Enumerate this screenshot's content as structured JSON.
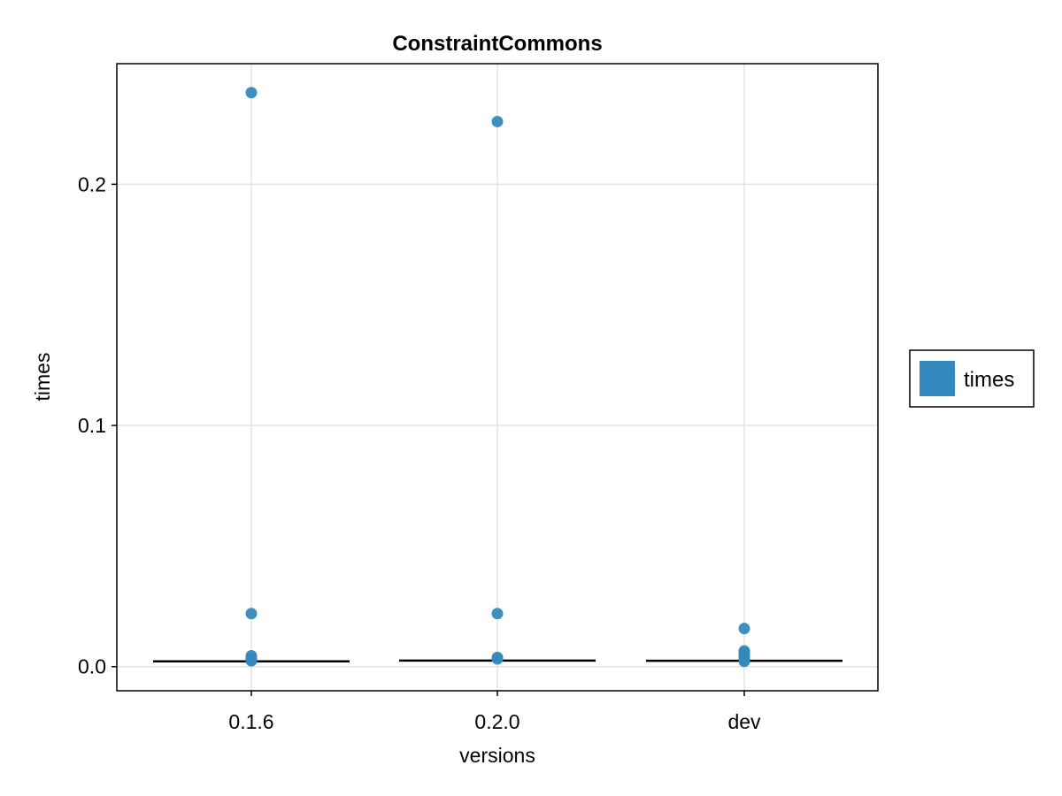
{
  "chart_data": {
    "type": "scatter",
    "title": "ConstraintCommons",
    "xlabel": "versions",
    "ylabel": "times",
    "categories": [
      "0.1.6",
      "0.2.0",
      "dev"
    ],
    "ylim": [
      -0.01,
      0.25
    ],
    "yticks": [
      0.0,
      0.1,
      0.2
    ],
    "ytick_labels": [
      "0.0",
      "0.1",
      "0.2"
    ],
    "grid": true,
    "legend_position": "right",
    "series": [
      {
        "name": "times",
        "color": "#348ABD",
        "points": [
          {
            "category": "0.1.6",
            "value": 0.238
          },
          {
            "category": "0.1.6",
            "value": 0.022
          },
          {
            "category": "0.1.6",
            "value": 0.0045
          },
          {
            "category": "0.1.6",
            "value": 0.0035
          },
          {
            "category": "0.1.6",
            "value": 0.0028
          },
          {
            "category": "0.1.6",
            "value": 0.0024
          },
          {
            "category": "0.2.0",
            "value": 0.226
          },
          {
            "category": "0.2.0",
            "value": 0.022
          },
          {
            "category": "0.2.0",
            "value": 0.0038
          },
          {
            "category": "0.2.0",
            "value": 0.0032
          },
          {
            "category": "dev",
            "value": 0.0158
          },
          {
            "category": "dev",
            "value": 0.0065
          },
          {
            "category": "dev",
            "value": 0.0058
          },
          {
            "category": "dev",
            "value": 0.005
          },
          {
            "category": "dev",
            "value": 0.0042
          },
          {
            "category": "dev",
            "value": 0.0035
          },
          {
            "category": "dev",
            "value": 0.0028
          },
          {
            "category": "dev",
            "value": 0.0022
          }
        ]
      }
    ],
    "medians": [
      {
        "category": "0.1.6",
        "value": 0.0022
      },
      {
        "category": "0.2.0",
        "value": 0.0025
      },
      {
        "category": "dev",
        "value": 0.0024
      }
    ],
    "median_color": "#000000"
  }
}
